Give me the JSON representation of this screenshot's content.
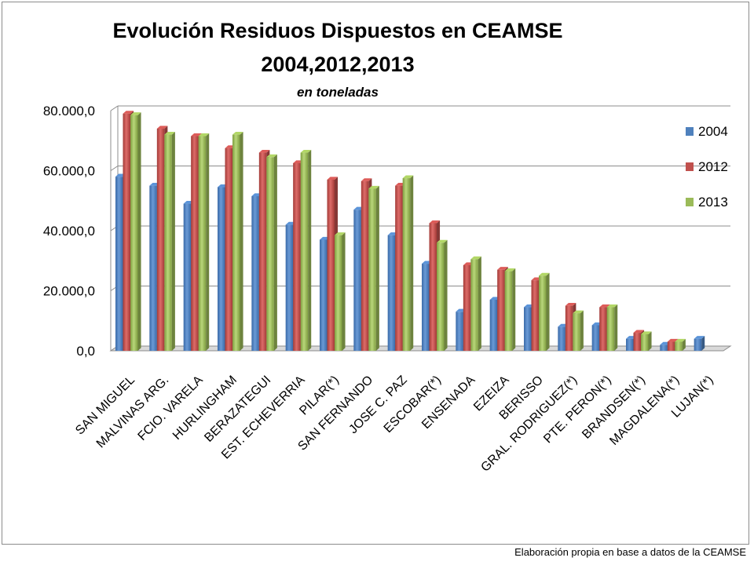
{
  "chart_data": {
    "type": "bar",
    "title": "Evolución Residuos Dispuestos en CEAMSE",
    "title_line2": "2004,2012,2013",
    "subtitle": "en toneladas",
    "categories": [
      "SAN MIGUEL",
      "MALVINAS ARG.",
      "FCIO. VARELA",
      "HURLINGHAM",
      "BERAZATEGUI",
      "EST. ECHEVERRIA",
      "PILAR(*)",
      "SAN FERNANDO",
      "JOSE C. PAZ",
      "ESCOBAR(*)",
      "ENSENADA",
      "EZEIZA",
      "BERISSO",
      "GRAL. RODRIGUEZ(*)",
      "PTE. PERON(*)",
      "BRANDSEN(*)",
      "MAGDALENA(*)",
      "LUJAN(*)"
    ],
    "series": [
      {
        "name": "2004",
        "color": "#4f81bd",
        "values": [
          58000,
          55000,
          49000,
          54500,
          51500,
          42000,
          37000,
          47000,
          38500,
          29000,
          13000,
          17000,
          14500,
          8000,
          8500,
          4000,
          2000,
          4000
        ]
      },
      {
        "name": "2012",
        "color": "#c0504d",
        "values": [
          79000,
          74000,
          71500,
          67500,
          66000,
          62500,
          57000,
          56500,
          55000,
          42500,
          28500,
          27000,
          23500,
          15000,
          14500,
          6000,
          3000,
          0
        ]
      },
      {
        "name": "2013",
        "color": "#9bbb59",
        "values": [
          78500,
          72000,
          71500,
          72000,
          64500,
          66000,
          38500,
          54000,
          57500,
          36000,
          30500,
          26500,
          25000,
          12500,
          14500,
          5500,
          3000,
          0
        ]
      }
    ],
    "yticks": [
      "0,0",
      "20.000,0",
      "40.000,0",
      "60.000,0",
      "80.000,0"
    ],
    "ylim": [
      0,
      80000
    ],
    "grid": true,
    "legend_position": "right"
  },
  "footer": {
    "source": "Elaboración propia en base a datos de la CEAMSE"
  }
}
